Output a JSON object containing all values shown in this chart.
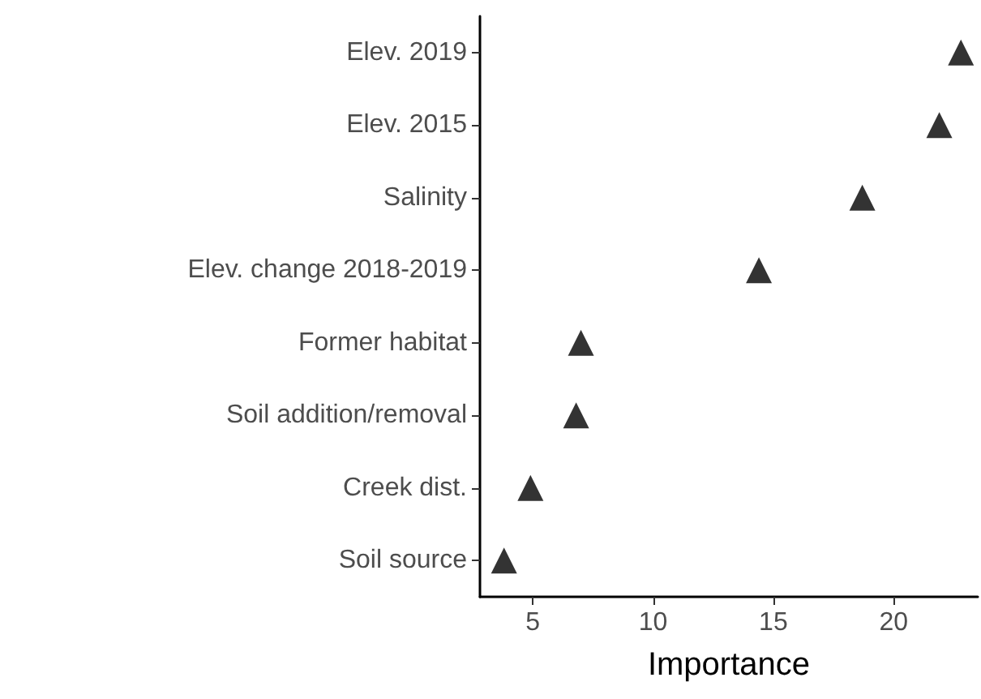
{
  "chart_data": {
    "type": "scatter",
    "orientation": "horizontal",
    "xlabel": "Importance",
    "categories": [
      "Elev. 2019",
      "Elev. 2015",
      "Salinity",
      "Elev. change 2018-2019",
      "Former habitat",
      "Soil addition/removal",
      "Creek dist.",
      "Soil source"
    ],
    "values": [
      22.8,
      21.9,
      18.7,
      14.4,
      7.0,
      6.8,
      4.9,
      3.8
    ],
    "color": "#000000",
    "marker": "triangle",
    "xlim": [
      2.8,
      23.5
    ],
    "xticks": [
      5,
      10,
      15,
      20
    ],
    "grid": false
  }
}
